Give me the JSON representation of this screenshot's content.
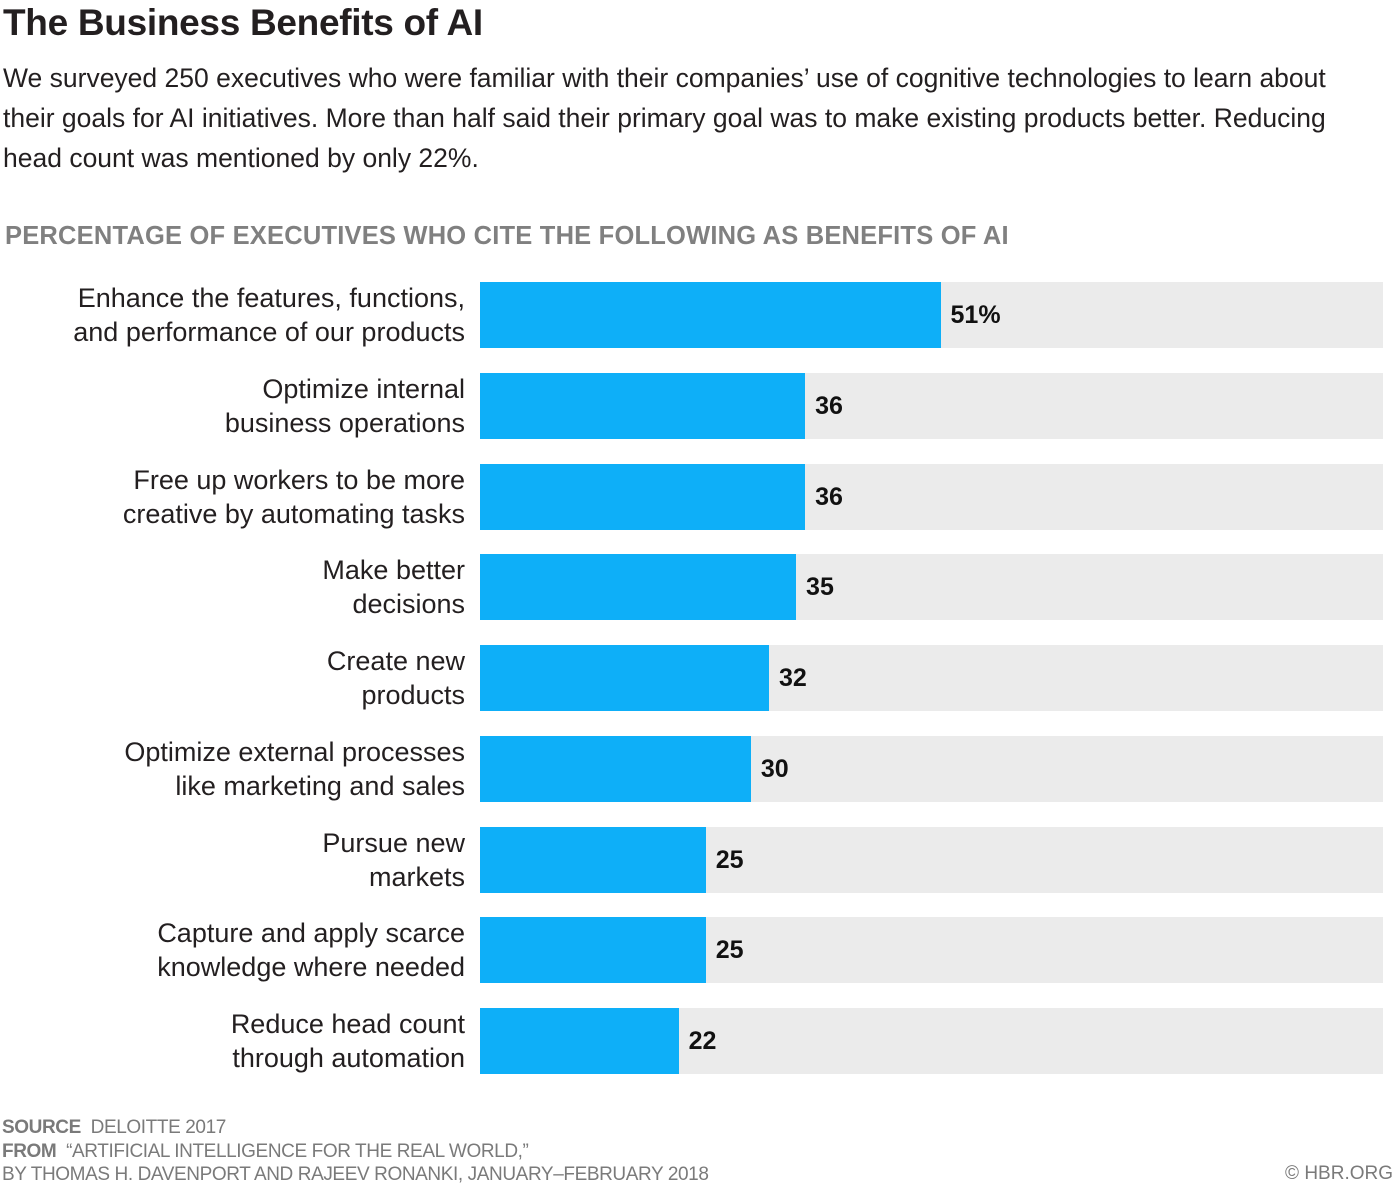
{
  "title": "The Business Benefits of AI",
  "subtitle": "We surveyed 250 executives who were familiar with their companies’ use of cognitive technologies to learn about their goals for AI initiatives. More than half said their primary goal was to make existing products better. Reducing head count was mentioned by only 22%.",
  "colors": {
    "bar": "#0eaff8",
    "track": "#ebebeb",
    "heading": "#808080"
  },
  "chart_data": {
    "type": "bar",
    "orientation": "horizontal",
    "title": "PERCENTAGE OF EXECUTIVES WHO CITE THE FOLLOWING AS BENEFITS OF AI",
    "xlim": [
      0,
      100
    ],
    "grid": false,
    "categories": [
      [
        "Enhance the features, functions,",
        "and performance of our products"
      ],
      [
        "Optimize internal",
        "business operations"
      ],
      [
        "Free up workers to be more",
        "creative by automating tasks"
      ],
      [
        "Make better",
        "decisions"
      ],
      [
        "Create new",
        "products"
      ],
      [
        "Optimize external processes",
        "like marketing and sales"
      ],
      [
        "Pursue new",
        "markets"
      ],
      [
        "Capture and apply scarce",
        "knowledge where needed"
      ],
      [
        "Reduce head count",
        "through automation"
      ]
    ],
    "values": [
      51,
      36,
      36,
      35,
      32,
      30,
      25,
      25,
      22
    ],
    "data_labels": [
      "51%",
      "36",
      "36",
      "35",
      "32",
      "30",
      "25",
      "25",
      "22"
    ]
  },
  "footer": {
    "source_label": "SOURCE",
    "source": "DELOITTE 2017",
    "from_label": "FROM",
    "from": "“ARTIFICIAL INTELLIGENCE FOR THE REAL WORLD,”",
    "byline": "BY THOMAS H. DAVENPORT AND RAJEEV RONANKI, JANUARY–FEBRUARY 2018",
    "credit": "© HBR.ORG"
  }
}
